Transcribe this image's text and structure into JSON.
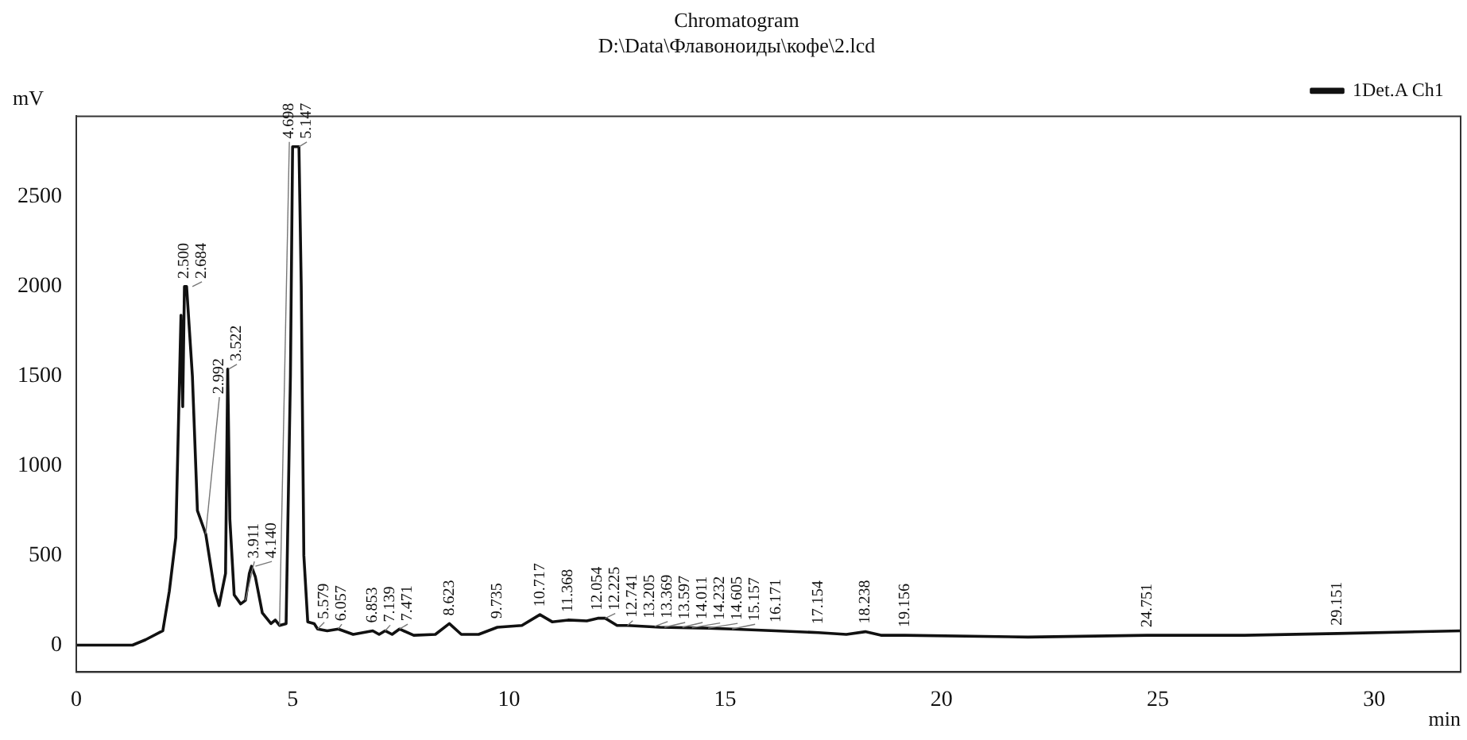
{
  "chart_data": {
    "type": "line",
    "title": "Chromatogram",
    "subtitle": "D:\\Data\\Флавоноиды\\кофе\\2.lcd",
    "xlabel": "min",
    "ylabel": "mV",
    "xlim": [
      0,
      32
    ],
    "xticks": [
      0,
      5,
      10,
      15,
      20,
      25,
      30
    ],
    "ylim": [
      -150,
      2950
    ],
    "yticks": [
      0,
      500,
      1000,
      1500,
      2000,
      2500
    ],
    "grid": false,
    "legend": "top right",
    "marker": "none",
    "line_style": "solid",
    "series": [
      {
        "name": "1Det.A Ch1",
        "color": "#111111",
        "x": [
          0,
          1.3,
          1.6,
          2.0,
          2.15,
          2.3,
          2.42,
          2.46,
          2.5,
          2.55,
          2.684,
          2.8,
          2.992,
          3.2,
          3.3,
          3.45,
          3.5,
          3.55,
          3.65,
          3.8,
          3.911,
          4.0,
          4.05,
          4.14,
          4.3,
          4.5,
          4.6,
          4.698,
          4.85,
          4.95,
          5.0,
          5.147,
          5.2,
          5.26,
          5.35,
          5.5,
          5.579,
          5.8,
          6.057,
          6.4,
          6.853,
          7.0,
          7.139,
          7.3,
          7.471,
          7.8,
          8.3,
          8.623,
          8.9,
          9.3,
          9.735,
          10.3,
          10.717,
          11.0,
          11.368,
          11.8,
          12.054,
          12.225,
          12.5,
          12.741,
          13.5,
          14.605,
          15.157,
          16.171,
          17.154,
          17.8,
          18.238,
          18.6,
          19.156,
          22,
          24.751,
          27,
          29.151,
          32
        ],
        "values": [
          0,
          0,
          30,
          80,
          300,
          600,
          1840,
          1330,
          2000,
          2000,
          1500,
          750,
          620,
          300,
          220,
          400,
          1540,
          700,
          280,
          230,
          250,
          400,
          440,
          380,
          180,
          120,
          140,
          110,
          120,
          1500,
          2780,
          2780,
          2000,
          500,
          130,
          120,
          90,
          80,
          90,
          60,
          80,
          60,
          80,
          60,
          90,
          55,
          60,
          120,
          60,
          60,
          100,
          110,
          170,
          130,
          140,
          135,
          150,
          150,
          110,
          110,
          100,
          95,
          90,
          80,
          70,
          60,
          75,
          55,
          55,
          45,
          55,
          55,
          65,
          80
        ]
      }
    ],
    "annotations": [
      {
        "text": "2.500",
        "x": 2.5,
        "y": 2000
      },
      {
        "text": "2.684",
        "x": 2.684,
        "y": 2000
      },
      {
        "text": "2.992",
        "x": 2.992,
        "y": 620
      },
      {
        "text": "3.522",
        "x": 3.522,
        "y": 1540
      },
      {
        "text": "3.911",
        "x": 3.911,
        "y": 250
      },
      {
        "text": "4.140",
        "x": 4.14,
        "y": 440
      },
      {
        "text": "4.698",
        "x": 4.698,
        "y": 110
      },
      {
        "text": "5.147",
        "x": 5.147,
        "y": 2780
      },
      {
        "text": "5.579",
        "x": 5.579,
        "y": 90
      },
      {
        "text": "6.057",
        "x": 6.057,
        "y": 90
      },
      {
        "text": "6.853",
        "x": 6.853,
        "y": 80
      },
      {
        "text": "7.139",
        "x": 7.139,
        "y": 80
      },
      {
        "text": "7.471",
        "x": 7.471,
        "y": 90
      },
      {
        "text": "8.623",
        "x": 8.623,
        "y": 120
      },
      {
        "text": "9.735",
        "x": 9.735,
        "y": 100
      },
      {
        "text": "10.717",
        "x": 10.717,
        "y": 170
      },
      {
        "text": "11.368",
        "x": 11.368,
        "y": 140
      },
      {
        "text": "12.054",
        "x": 12.054,
        "y": 150
      },
      {
        "text": "12.225",
        "x": 12.225,
        "y": 150
      },
      {
        "text": "12.741",
        "x": 12.741,
        "y": 110
      },
      {
        "text": "13.205",
        "x": 13.205,
        "y": 105
      },
      {
        "text": "13.369",
        "x": 13.369,
        "y": 105
      },
      {
        "text": "13.597",
        "x": 13.597,
        "y": 100
      },
      {
        "text": "14.011",
        "x": 14.011,
        "y": 100
      },
      {
        "text": "14.232",
        "x": 14.232,
        "y": 97
      },
      {
        "text": "14.605",
        "x": 14.605,
        "y": 95
      },
      {
        "text": "15.157",
        "x": 15.157,
        "y": 90
      },
      {
        "text": "16.171",
        "x": 16.171,
        "y": 80
      },
      {
        "text": "17.154",
        "x": 17.154,
        "y": 70
      },
      {
        "text": "18.238",
        "x": 18.238,
        "y": 75
      },
      {
        "text": "19.156",
        "x": 19.156,
        "y": 55
      },
      {
        "text": "24.751",
        "x": 24.751,
        "y": 55
      },
      {
        "text": "29.151",
        "x": 29.151,
        "y": 65
      }
    ]
  }
}
